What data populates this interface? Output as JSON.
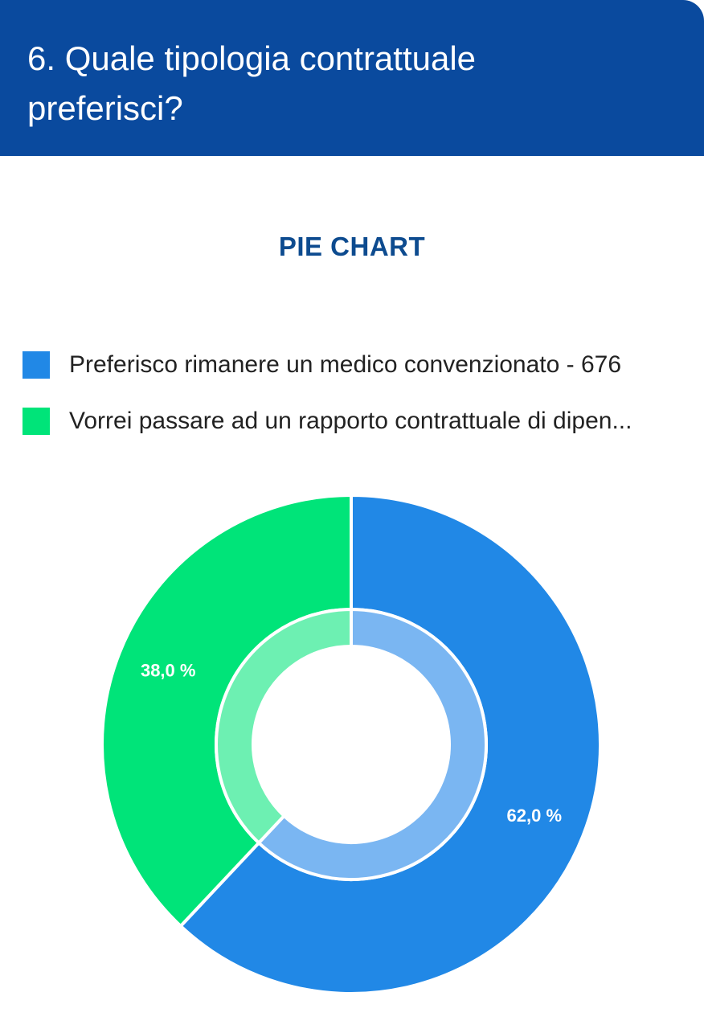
{
  "header": {
    "title": "6. Quale tipologia contrattuale preferisci?"
  },
  "colors": {
    "header_bg": "#0a4a9e",
    "chart_title": "#0d4b8f",
    "series_blue": "#2188e6",
    "series_blue_inner": "#7ab6f2",
    "series_green": "#00e479",
    "series_green_inner": "#6df0b2"
  },
  "chart_data": {
    "type": "pie",
    "title": "PIE CHART",
    "legend": [
      {
        "label": "Preferisco rimanere un medico convenzionato - 676",
        "color": "#2188e6"
      },
      {
        "label": "Vorrei passare ad un rapporto contrattuale di dipen...",
        "color": "#00e479"
      }
    ],
    "slices": [
      {
        "value": 62.0,
        "label": "62,0 %",
        "color": "#2188e6",
        "inner_color": "#7ab6f2"
      },
      {
        "value": 38.0,
        "label": "38,0 %",
        "color": "#00e479",
        "inner_color": "#6df0b2"
      }
    ]
  }
}
